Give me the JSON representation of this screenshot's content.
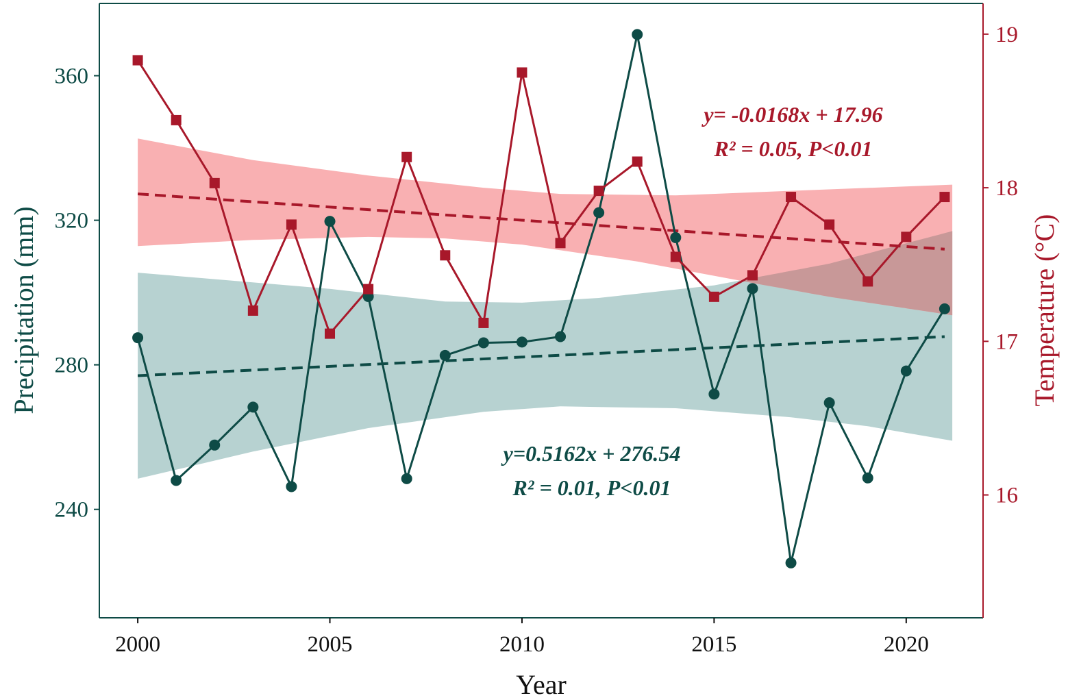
{
  "chart_data": {
    "type": "line",
    "xlabel": "Year",
    "ylabel_left": "Precipitation (mm)",
    "ylabel_right": "Temperature (°C)",
    "xlim": [
      1999,
      2022
    ],
    "ylim_left": [
      210,
      380
    ],
    "ylim_right": [
      15.2,
      19.2
    ],
    "x_ticks": [
      2000,
      2005,
      2010,
      2015,
      2020
    ],
    "x_tick_labels": [
      "2000",
      "2005",
      "2010",
      "2015",
      "2020"
    ],
    "y_left_ticks": [
      240,
      280,
      320,
      360
    ],
    "y_left_tick_labels": [
      "240",
      "280",
      "320",
      "360"
    ],
    "y_right_ticks": [
      16,
      17,
      18,
      19
    ],
    "y_right_tick_labels": [
      "16",
      "17",
      "18",
      "19"
    ],
    "x": [
      2000,
      2001,
      2002,
      2003,
      2004,
      2005,
      2006,
      2007,
      2008,
      2009,
      2010,
      2011,
      2012,
      2013,
      2014,
      2015,
      2016,
      2017,
      2018,
      2019,
      2020,
      2021
    ],
    "series": [
      {
        "name": "Precipitation",
        "axis": "left",
        "color": "#0e4b46",
        "marker": "circle",
        "values": [
          287.5,
          248.0,
          257.8,
          268.3,
          246.3,
          319.7,
          298.9,
          248.5,
          282.6,
          286.1,
          286.3,
          287.8,
          322.1,
          371.4,
          315.2,
          271.9,
          301.1,
          225.2,
          269.5,
          248.7,
          278.3,
          295.5
        ]
      },
      {
        "name": "Temperature",
        "axis": "right",
        "color": "#a8182a",
        "marker": "square",
        "values": [
          18.83,
          18.44,
          18.03,
          17.2,
          17.76,
          17.05,
          17.34,
          18.2,
          17.56,
          17.12,
          18.75,
          17.64,
          17.98,
          18.17,
          17.55,
          17.29,
          17.43,
          17.94,
          17.76,
          17.39,
          17.68,
          17.94
        ]
      }
    ],
    "trends": [
      {
        "series": "Precipitation",
        "axis": "left",
        "start": [
          2000,
          277.0
        ],
        "end": [
          2021,
          287.8
        ],
        "band_color": "#b7d2d1",
        "band_upper": [
          [
            2000,
            305.5
          ],
          [
            2005,
            301.0
          ],
          [
            2008,
            297.5
          ],
          [
            2010,
            297.2
          ],
          [
            2012,
            298.5
          ],
          [
            2015,
            302.0
          ],
          [
            2018,
            308.0
          ],
          [
            2021.2,
            317.0
          ]
        ],
        "band_lower": [
          [
            2000,
            248.5
          ],
          [
            2003,
            256.0
          ],
          [
            2006,
            262.5
          ],
          [
            2009,
            267.0
          ],
          [
            2011,
            268.5
          ],
          [
            2014,
            268.0
          ],
          [
            2017,
            265.5
          ],
          [
            2019,
            263.0
          ],
          [
            2021.2,
            259.0
          ]
        ]
      },
      {
        "series": "Temperature",
        "axis": "right",
        "start": [
          2000,
          17.96
        ],
        "end": [
          2021,
          17.6
        ],
        "band_color": "#f9b0b2",
        "band_upper": [
          [
            2000,
            18.32
          ],
          [
            2003,
            18.18
          ],
          [
            2006,
            18.08
          ],
          [
            2009,
            18.0
          ],
          [
            2011,
            17.96
          ],
          [
            2014,
            17.95
          ],
          [
            2017,
            17.98
          ],
          [
            2021.2,
            18.02
          ]
        ],
        "band_lower": [
          [
            2000,
            17.62
          ],
          [
            2003,
            17.66
          ],
          [
            2006,
            17.68
          ],
          [
            2008,
            17.67
          ],
          [
            2010,
            17.63
          ],
          [
            2013,
            17.52
          ],
          [
            2016,
            17.38
          ],
          [
            2018,
            17.29
          ],
          [
            2021.2,
            17.17
          ]
        ]
      }
    ],
    "annotations": {
      "temperature": {
        "line1": "y= -0.0168x + 17.96",
        "line2": "R² = 0.05, P<0.01"
      },
      "precipitation": {
        "line1": "y=0.5162x + 276.54",
        "line2": "R² = 0.01, P<0.01"
      }
    }
  },
  "colors": {
    "precip": "#0e4b46",
    "temp": "#a8182a",
    "precip_band": "#b7d2d1",
    "temp_band": "#f9b0b2",
    "overlap": "#c89898",
    "frame_left": "#0e4b46",
    "frame_right": "#a8182a"
  }
}
